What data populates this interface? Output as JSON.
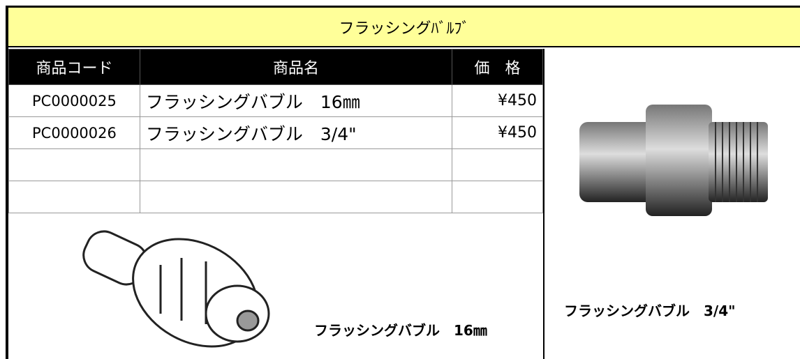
{
  "header": {
    "title": "フラッシングﾊﾞﾙﾌﾞ"
  },
  "table": {
    "columns": [
      "商品コード",
      "商品名",
      "価　格"
    ],
    "rows": [
      [
        "PC0000025",
        "フラッシングバブル　16㎜",
        "¥450"
      ],
      [
        "PC0000026",
        "フラッシングバブル　3/4\"",
        "¥450"
      ]
    ]
  },
  "captions": [
    "フラッシングバブル　16㎜",
    "フラッシングバブル　3/4\""
  ]
}
